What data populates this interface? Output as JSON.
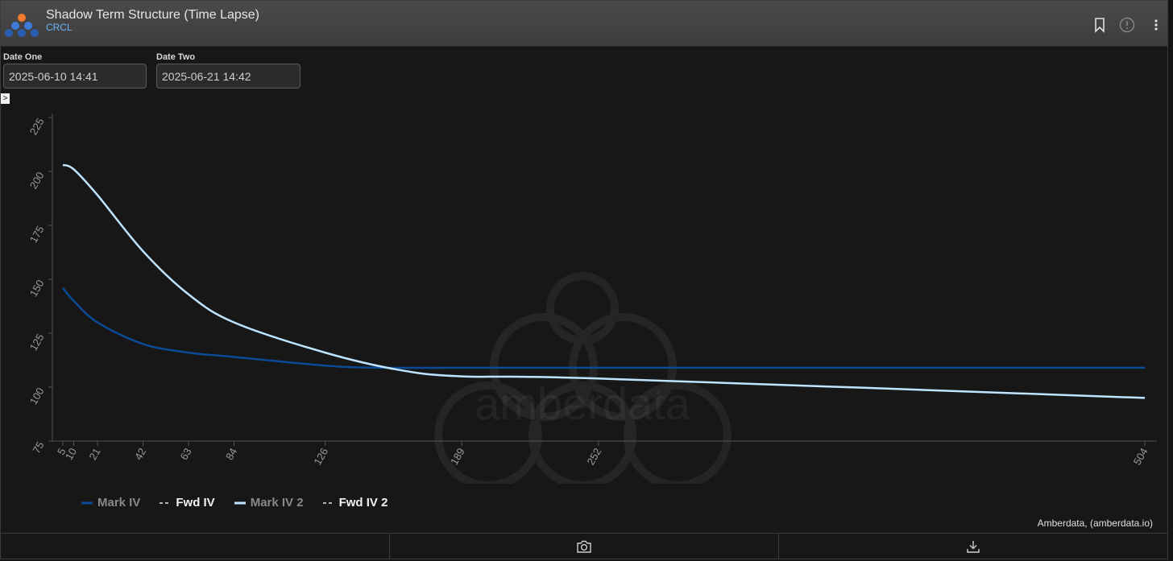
{
  "header": {
    "title": "Shadow Term Structure (Time Lapse)",
    "subtitle": "CRCL",
    "icons": [
      "bookmark-icon",
      "info-icon",
      "more-vert-icon"
    ]
  },
  "inputs": {
    "date_one_label": "Date One",
    "date_one_value": "2025-06-10 14:41",
    "date_two_label": "Date Two",
    "date_two_value": "2025-06-21 14:42"
  },
  "expand_glyph": ">",
  "watermark": "amberdata",
  "credit": "Amberdata, (amberdata.io)",
  "footer": {
    "icons": [
      "camera-icon",
      "download-icon"
    ]
  },
  "colors": {
    "mark_iv": "#0b4a95",
    "mark_iv_2": "#bfe4ff",
    "fwd": "#e6e6e6",
    "background": "#171717"
  },
  "chart_data": {
    "type": "line",
    "xlabel": "",
    "ylabel": "",
    "ylim": [
      75,
      225
    ],
    "yticks": [
      75,
      100,
      125,
      150,
      175,
      200,
      225
    ],
    "xticks": [
      5,
      10,
      21,
      42,
      63,
      84,
      126,
      189,
      252,
      504
    ],
    "xlim": [
      5,
      504
    ],
    "legend_position": "bottom-left",
    "series": [
      {
        "name": "Mark IV",
        "style": "solid",
        "color": "#0b4a95",
        "x": [
          5,
          10,
          21,
          42,
          63,
          84,
          126,
          150,
          189,
          252,
          504
        ],
        "y": [
          146,
          140,
          130,
          120,
          116,
          114,
          110,
          109,
          109,
          109,
          109
        ]
      },
      {
        "name": "Fwd IV",
        "style": "dashed",
        "color": "#e6e6e6",
        "x": [],
        "y": []
      },
      {
        "name": "Mark IV 2",
        "style": "solid",
        "color": "#bfe4ff",
        "x": [
          5,
          10,
          21,
          42,
          63,
          84,
          126,
          160,
          189,
          252,
          504
        ],
        "y": [
          203,
          201,
          189,
          163,
          143,
          130,
          116,
          108,
          105,
          104,
          95
        ]
      },
      {
        "name": "Fwd IV 2",
        "style": "dashed",
        "color": "#e6e6e6",
        "x": [],
        "y": []
      }
    ]
  }
}
